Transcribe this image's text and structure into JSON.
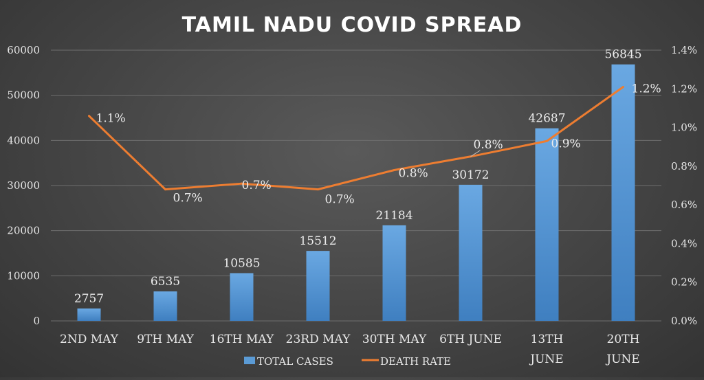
{
  "chart_data": {
    "type": "bar",
    "title": "TAMIL NADU COVID SPREAD",
    "categories": [
      [
        "2ND MAY"
      ],
      [
        "9TH MAY"
      ],
      [
        "16TH MAY"
      ],
      [
        "23RD MAY"
      ],
      [
        "30TH MAY"
      ],
      [
        "6TH JUNE"
      ],
      [
        "13TH",
        "JUNE"
      ],
      [
        "20TH",
        "JUNE"
      ]
    ],
    "series": [
      {
        "name": "TOTAL CASES",
        "type": "bar",
        "axis": "left",
        "values": [
          2757,
          6535,
          10585,
          15512,
          21184,
          30172,
          42687,
          56845
        ],
        "labels": [
          "2757",
          "6535",
          "10585",
          "15512",
          "21184",
          "30172",
          "42687",
          "56845"
        ],
        "color": "#5b9bd5"
      },
      {
        "name": "DEATH RATE",
        "type": "line",
        "axis": "right",
        "values": [
          1.06,
          0.68,
          0.71,
          0.68,
          0.78,
          0.85,
          0.93,
          1.21
        ],
        "labels": [
          "1.1%",
          "0.7%",
          "0.7%",
          "0.7%",
          "0.8%",
          "0.8%",
          "0.9%",
          "1.2%"
        ],
        "color": "#ed7d31"
      }
    ],
    "y_left": {
      "range": [
        0,
        60000
      ],
      "ticks": [
        "0",
        "10000",
        "20000",
        "30000",
        "40000",
        "50000",
        "60000"
      ]
    },
    "y_right": {
      "range": [
        0,
        1.4
      ],
      "ticks": [
        "0.0%",
        "0.2%",
        "0.4%",
        "0.6%",
        "0.8%",
        "1.0%",
        "1.2%",
        "1.4%"
      ]
    },
    "grid": true,
    "legend_position": "bottom"
  }
}
